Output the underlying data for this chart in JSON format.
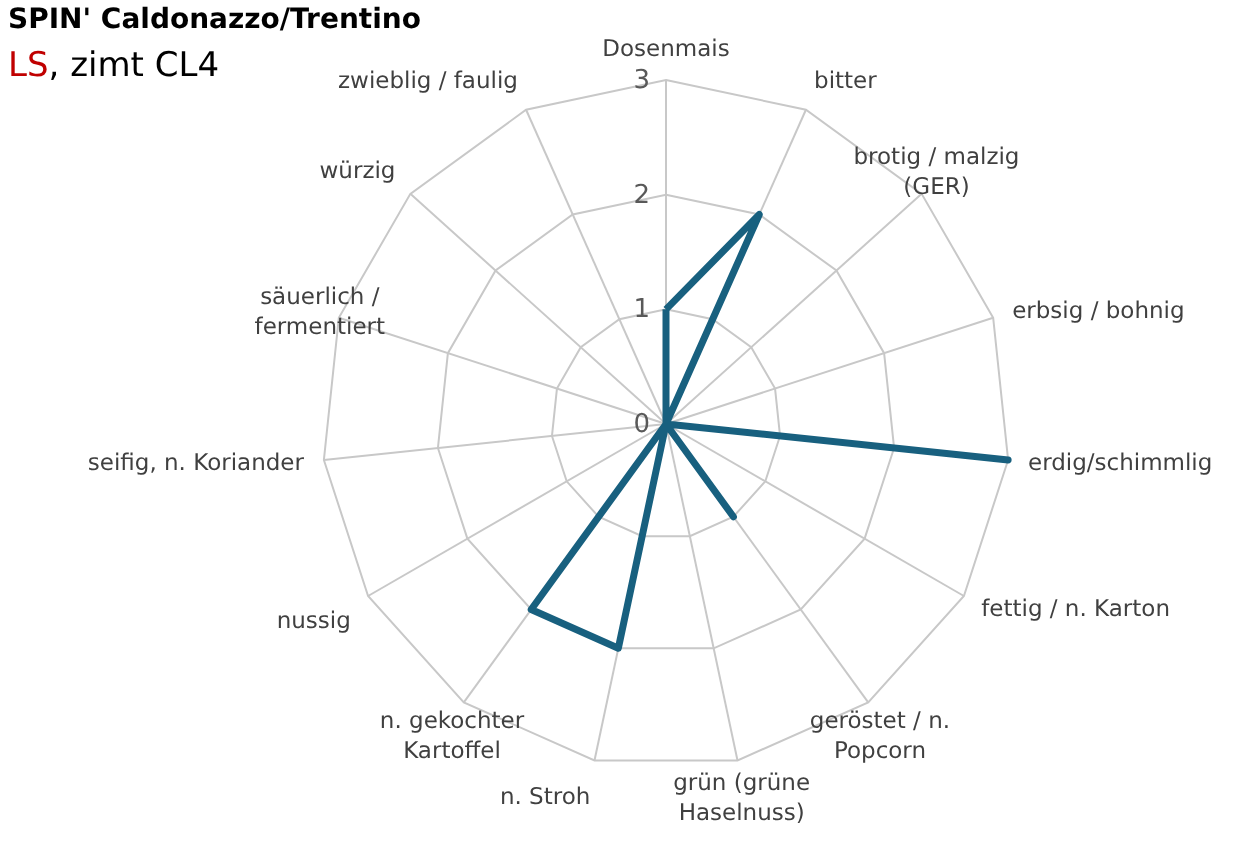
{
  "chart_data": {
    "type": "radar",
    "title": "SPIN' Caldonazzo/Trentino",
    "subtitle": "LS, zimt CL4",
    "categories": [
      "Dosenmais",
      "bitter",
      "brotig / malzig (GER)",
      "erbsig / bohnig",
      "erdig/schimmlig",
      "fettig / n. Karton",
      "geröstet / n. Popcorn",
      "grün (grüne Haselnuss)",
      "n. Stroh",
      "n. gekochter Kartoffel",
      "nussig",
      "seifig, n. Koriander",
      "säuerlich / fermentiert",
      "würzig",
      "zwieblig / faulig"
    ],
    "series": [
      {
        "color": "#18607f",
        "values": [
          1,
          2,
          0,
          0,
          3,
          0,
          1,
          0,
          2,
          2,
          0,
          0,
          0,
          0,
          0
        ]
      }
    ],
    "ylim": [
      0,
      3
    ],
    "yticks": [
      0,
      1,
      2,
      3
    ],
    "grid": true,
    "marker": "none",
    "line_style": "solid"
  }
}
